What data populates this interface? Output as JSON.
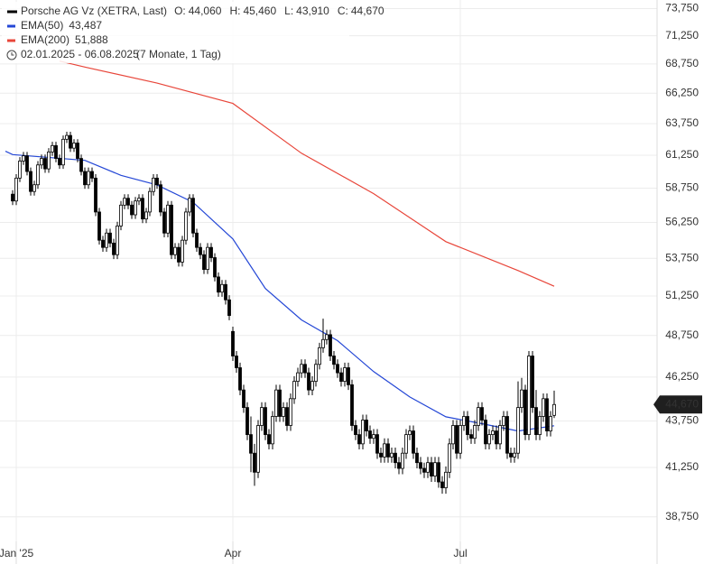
{
  "chart_data": {
    "type": "candlestick",
    "title": "Porsche AG Vz (XETRA, Last)",
    "ohlc_labels": [
      {
        "label": "O:",
        "value": "44,060"
      },
      {
        "label": "H:",
        "value": "45,460"
      },
      {
        "label": "L:",
        "value": "43,910"
      },
      {
        "label": "C:",
        "value": "44,670"
      }
    ],
    "date_range": "02.01.2025 - 06.08.2025",
    "period": "(7 Monate, 1 Tag)",
    "last_price_label": "44,670",
    "log_scale": true,
    "grid": true,
    "up_color": "#ffffff",
    "down_color": "#000000",
    "ylim": [
      37560,
      74550
    ],
    "yticks": [
      {
        "value": 38750,
        "label": "38,750"
      },
      {
        "value": 41250,
        "label": "41,250"
      },
      {
        "value": 43750,
        "label": "43,750"
      },
      {
        "value": 46250,
        "label": "46,250"
      },
      {
        "value": 48750,
        "label": "48,750"
      },
      {
        "value": 51250,
        "label": "51,250"
      },
      {
        "value": 53750,
        "label": "53,750"
      },
      {
        "value": 56250,
        "label": "56,250"
      },
      {
        "value": 58750,
        "label": "58,750"
      },
      {
        "value": 61250,
        "label": "61,250"
      },
      {
        "value": 63750,
        "label": "63,750"
      },
      {
        "value": 66250,
        "label": "66,250"
      },
      {
        "value": 68750,
        "label": "68,750"
      },
      {
        "value": 71250,
        "label": "71,250"
      },
      {
        "value": 73750,
        "label": "73,750"
      }
    ],
    "xlim": [
      -3.5,
      178.5
    ],
    "xticks": [
      {
        "value": 1,
        "label": "Jan '25"
      },
      {
        "value": 61,
        "label": "Apr"
      },
      {
        "value": 124,
        "label": "Jul"
      }
    ],
    "open": [
      58300,
      57800,
      59500,
      60800,
      61200,
      60000,
      58500,
      59000,
      60500,
      61000,
      60200,
      61500,
      62000,
      61000,
      60500,
      62500,
      62800,
      61800,
      62200,
      61000,
      60000,
      59000,
      60000,
      59500,
      57000,
      55000,
      54500,
      55500,
      54800,
      54000,
      56000,
      57500,
      58000,
      57500,
      56800,
      57800,
      58000,
      56500,
      57000,
      58500,
      59500,
      59000,
      57000,
      55500,
      57500,
      54000,
      54500,
      53500,
      55000,
      57000,
      58000,
      55500,
      54500,
      54000,
      53000,
      54500,
      53800,
      52500,
      51500,
      52000,
      51000,
      49000,
      47500,
      46800,
      45500,
      44500,
      43000,
      42000,
      41000,
      43500,
      44500,
      43000,
      42500,
      44000,
      45500,
      44000,
      44500,
      43500,
      45000,
      46000,
      46500,
      47000,
      46500,
      45500,
      46000,
      47000,
      48000,
      48500,
      48800,
      47500,
      47000,
      46500,
      46000,
      46800,
      45800,
      43500,
      43000,
      42500,
      43800,
      43200,
      42800,
      43000,
      42000,
      41800,
      42500,
      41800,
      42000,
      41500,
      41200,
      42000,
      43000,
      43200,
      42000,
      41500,
      41200,
      41000,
      41500,
      40800,
      41500,
      40500,
      40200,
      41000,
      42500,
      43500,
      42000,
      43500,
      44000,
      43000,
      42800,
      43500,
      44500,
      43800,
      42500,
      43000,
      43200,
      42500,
      43500,
      44000,
      42000,
      41800,
      42000,
      44500,
      45500,
      43000,
      47500,
      44500,
      43000,
      44000,
      45000,
      43200,
      44060
    ],
    "high": [
      58600,
      59800,
      61100,
      61500,
      61500,
      60300,
      59300,
      60800,
      61300,
      61300,
      61800,
      62300,
      62300,
      61300,
      62800,
      63100,
      63100,
      62500,
      62500,
      61300,
      60300,
      60300,
      60300,
      59800,
      57300,
      55300,
      55800,
      55800,
      55100,
      56300,
      57800,
      58300,
      58300,
      57800,
      58100,
      58300,
      58300,
      57300,
      58800,
      59800,
      59800,
      59300,
      57300,
      57800,
      57800,
      54800,
      54800,
      55300,
      57300,
      58300,
      58300,
      55800,
      54800,
      54300,
      54800,
      54800,
      54100,
      52800,
      52300,
      52300,
      51300,
      49300,
      47800,
      47100,
      45800,
      44800,
      44000,
      42500,
      43800,
      44800,
      44800,
      43300,
      44300,
      45800,
      45800,
      44800,
      44800,
      45300,
      46300,
      46800,
      47300,
      47300,
      46800,
      46300,
      47300,
      48300,
      49800,
      49100,
      49100,
      47800,
      47300,
      46800,
      47100,
      47100,
      46100,
      43800,
      43300,
      44100,
      44100,
      43500,
      43300,
      43300,
      42300,
      42800,
      42800,
      42300,
      42300,
      41800,
      42300,
      43300,
      43500,
      43500,
      42300,
      41800,
      41500,
      41800,
      41800,
      41800,
      41800,
      40800,
      41300,
      42800,
      43800,
      43800,
      43800,
      44300,
      44300,
      43300,
      43800,
      44800,
      44800,
      44100,
      43300,
      43500,
      43500,
      43800,
      44300,
      44300,
      42300,
      42300,
      46000,
      46200,
      45800,
      47800,
      47800,
      45500,
      44300,
      45300,
      45300,
      44300,
      45460
    ],
    "low": [
      57500,
      57500,
      59200,
      60500,
      59700,
      58200,
      58200,
      58700,
      60200,
      59900,
      59900,
      61200,
      60700,
      60200,
      60200,
      62200,
      61500,
      61500,
      60700,
      59700,
      58700,
      58700,
      59200,
      56700,
      54700,
      54200,
      54200,
      54500,
      53700,
      53700,
      55700,
      57200,
      57200,
      56500,
      56500,
      57500,
      56200,
      56200,
      56700,
      58200,
      58700,
      56700,
      55200,
      55200,
      53700,
      53700,
      53200,
      53200,
      54700,
      56700,
      55200,
      54200,
      53700,
      52700,
      52700,
      53500,
      52200,
      51200,
      51200,
      50700,
      49700,
      47200,
      46500,
      45200,
      44200,
      42700,
      41000,
      40300,
      40700,
      43200,
      42700,
      42200,
      42200,
      43700,
      43700,
      43700,
      43200,
      43200,
      44700,
      45700,
      46200,
      46200,
      45200,
      45200,
      45700,
      46700,
      47700,
      48200,
      47200,
      46700,
      46200,
      45700,
      45700,
      45500,
      43200,
      42700,
      42200,
      42200,
      42900,
      42500,
      42500,
      41700,
      41500,
      41500,
      41500,
      41500,
      41200,
      40900,
      40900,
      41700,
      42700,
      41700,
      41200,
      40900,
      40700,
      40700,
      40500,
      40500,
      40200,
      39900,
      39900,
      40700,
      42200,
      41700,
      41700,
      43200,
      42700,
      42500,
      42500,
      43200,
      43500,
      42200,
      42200,
      42700,
      42200,
      42200,
      43200,
      41700,
      41500,
      41500,
      41700,
      44200,
      42700,
      42700,
      44200,
      42700,
      42700,
      43700,
      42900,
      42900,
      43910
    ],
    "close": [
      57800,
      59500,
      60800,
      61200,
      60000,
      58500,
      59000,
      60500,
      61000,
      60200,
      61500,
      62000,
      61000,
      60500,
      62500,
      62800,
      61800,
      62200,
      61000,
      60000,
      59000,
      60000,
      59500,
      57000,
      55000,
      54500,
      55500,
      54800,
      54000,
      56000,
      57500,
      58000,
      57500,
      56800,
      57800,
      58000,
      56500,
      57000,
      58500,
      59500,
      59000,
      57000,
      55500,
      57500,
      54000,
      54500,
      53500,
      55000,
      57000,
      58000,
      55500,
      54500,
      54000,
      53000,
      54500,
      53800,
      52500,
      51500,
      52000,
      51000,
      50000,
      47500,
      46800,
      45500,
      44500,
      43000,
      42000,
      41000,
      43500,
      44500,
      43000,
      42500,
      44000,
      45500,
      44000,
      44500,
      43500,
      45000,
      46000,
      46500,
      47000,
      46500,
      45500,
      46000,
      47000,
      48000,
      48500,
      48800,
      47500,
      47000,
      46500,
      46000,
      46800,
      45800,
      43500,
      43000,
      42500,
      43800,
      43200,
      42800,
      43000,
      42000,
      41800,
      42500,
      41800,
      42000,
      41500,
      41200,
      42000,
      43000,
      43200,
      42000,
      41500,
      41200,
      41000,
      41500,
      40800,
      41500,
      40500,
      40200,
      41000,
      42500,
      43500,
      42000,
      43500,
      44000,
      43000,
      42800,
      43500,
      44500,
      43800,
      42500,
      43000,
      43200,
      42500,
      43500,
      44000,
      42000,
      41800,
      42000,
      44500,
      45500,
      43000,
      47500,
      44500,
      43000,
      44000,
      45000,
      43200,
      44000,
      44670
    ],
    "series": [
      {
        "name": "EMA(50)",
        "last_label": "43,487",
        "color": "#2447d6",
        "x": [
          -2,
          0,
          20,
          30,
          40,
          50,
          61,
          70,
          80,
          90,
          100,
          110,
          120,
          130,
          140,
          150
        ],
        "values": [
          61560,
          61300,
          60850,
          59710,
          58990,
          57700,
          55090,
          51740,
          49720,
          48430,
          46570,
          45100,
          43980,
          43600,
          43200,
          43487
        ]
      },
      {
        "name": "EMA(200)",
        "last_label": "51,888",
        "color": "#e8463a",
        "x": [
          13,
          20,
          40,
          61,
          80,
          100,
          120,
          140,
          150
        ],
        "values": [
          69000,
          68480,
          67100,
          65400,
          61400,
          58340,
          54900,
          52930,
          51888
        ]
      }
    ]
  }
}
